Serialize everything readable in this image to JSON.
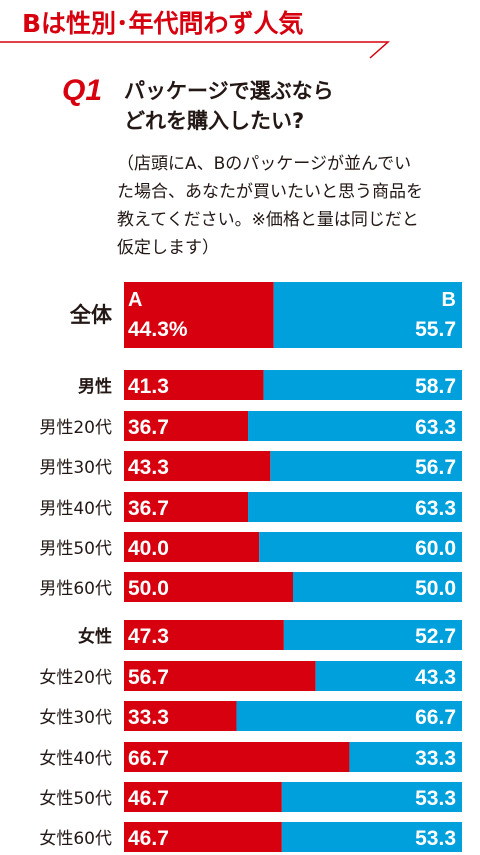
{
  "headline": "Bは性別･年代問わず人気",
  "question": {
    "label": "Q1",
    "title_lines": [
      "パッケージで選ぶなら",
      "どれを購入したい?"
    ],
    "note_lines": [
      "（店頭にA、Bのパッケージが並んでい",
      "た場合、あなたが買いたいと思う商品を",
      "教えてください。※価格と量は同じだと",
      "仮定します）"
    ]
  },
  "colors": {
    "a": "#d7000f",
    "b": "#00a0dc",
    "accent": "#d7000f"
  },
  "chart_data": {
    "type": "bar",
    "stacked": true,
    "orientation": "horizontal",
    "series_labels": {
      "a": "A",
      "b": "B"
    },
    "categories": [
      "全体",
      "男性",
      "男性20代",
      "男性30代",
      "男性40代",
      "男性50代",
      "男性60代",
      "女性",
      "女性20代",
      "女性30代",
      "女性40代",
      "女性50代",
      "女性60代"
    ],
    "bold_categories": [
      "全体",
      "男性",
      "女性"
    ],
    "series": [
      {
        "name": "A",
        "values": [
          44.3,
          41.3,
          36.7,
          43.3,
          36.7,
          40.0,
          50.0,
          47.3,
          56.7,
          33.3,
          66.7,
          46.7,
          46.7
        ]
      },
      {
        "name": "B",
        "values": [
          55.7,
          58.7,
          63.3,
          56.7,
          63.3,
          60.0,
          50.0,
          52.7,
          43.3,
          66.7,
          33.3,
          53.3,
          53.3
        ]
      }
    ],
    "value_labels": {
      "a": [
        "44.3%",
        "41.3",
        "36.7",
        "43.3",
        "36.7",
        "40.0",
        "50.0",
        "47.3",
        "56.7",
        "33.3",
        "66.7",
        "46.7",
        "46.7"
      ],
      "b": [
        "55.7",
        "58.7",
        "63.3",
        "56.7",
        "63.3",
        "60.0",
        "50.0",
        "52.7",
        "43.3",
        "66.7",
        "33.3",
        "53.3",
        "53.3"
      ]
    },
    "xlim": [
      0,
      100
    ]
  }
}
